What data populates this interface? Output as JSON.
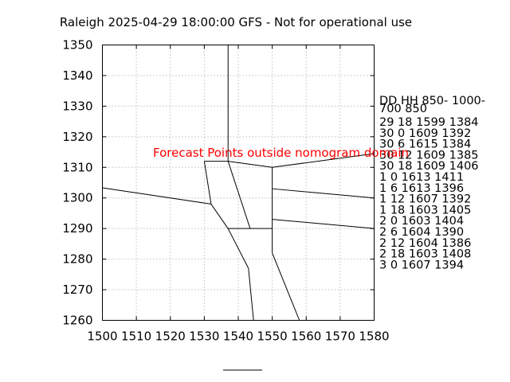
{
  "chart_data": {
    "type": "line",
    "title": "Raleigh 2025-04-29 18:00:00 GFS - Not for operational use",
    "xlim": [
      1500,
      1580
    ],
    "ylim": [
      1260,
      1350
    ],
    "x_ticks": [
      1500,
      1510,
      1520,
      1530,
      1540,
      1550,
      1560,
      1570,
      1580
    ],
    "y_ticks": [
      1260,
      1270,
      1280,
      1290,
      1300,
      1310,
      1320,
      1330,
      1340,
      1350
    ],
    "grid": true,
    "warning": "Forecast Points outside nomogram domain",
    "table_header": [
      "DD   HH 850- 1000-",
      "     700   850"
    ],
    "table_rows": [
      "29 18 1599 1384",
      "30  0 1609 1392",
      "30  6 1615 1384",
      "30 12 1609 1385",
      "30 18 1609 1406",
      "1   0 1613 1411",
      "1   6 1613 1396",
      "1 12 1607 1392",
      "1 18 1603 1405",
      "2   0 1603 1404",
      "2   6 1604 1390",
      "2 12 1604 1386",
      "2 18 1603 1408",
      "3   0 1607 1394"
    ],
    "boundaries": [
      [
        [
          1537,
          1350
        ],
        [
          1537,
          1312
        ]
      ],
      [
        [
          1530,
          1312
        ],
        [
          1537,
          1312
        ]
      ],
      [
        [
          1537,
          1312
        ],
        [
          1550,
          1310
        ]
      ],
      [
        [
          1550,
          1310
        ],
        [
          1580,
          1314.5
        ]
      ],
      [
        [
          1530,
          1312
        ],
        [
          1532,
          1298
        ]
      ],
      [
        [
          1500,
          1303.3
        ],
        [
          1532,
          1298
        ]
      ],
      [
        [
          1532,
          1298
        ],
        [
          1537,
          1290
        ]
      ],
      [
        [
          1537,
          1312
        ],
        [
          1543.5,
          1290
        ]
      ],
      [
        [
          1550,
          1310
        ],
        [
          1550,
          1290
        ]
      ],
      [
        [
          1550,
          1303
        ],
        [
          1580,
          1300
        ]
      ],
      [
        [
          1550,
          1293
        ],
        [
          1580,
          1290
        ]
      ],
      [
        [
          1537,
          1290
        ],
        [
          1550,
          1290
        ]
      ],
      [
        [
          1550,
          1290
        ],
        [
          1550,
          1282
        ]
      ],
      [
        [
          1550,
          1282
        ],
        [
          1558,
          1260
        ]
      ],
      [
        [
          1537,
          1290
        ],
        [
          1543,
          1277
        ]
      ],
      [
        [
          1543,
          1277
        ],
        [
          1544.5,
          1260
        ]
      ]
    ]
  }
}
